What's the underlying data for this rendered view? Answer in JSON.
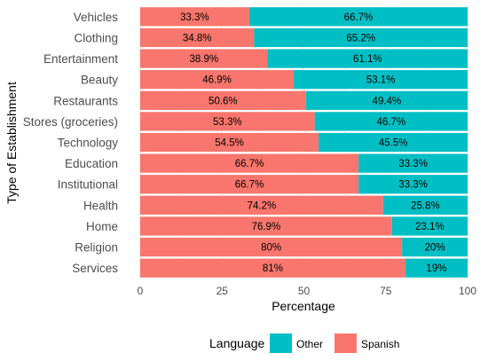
{
  "chart_data": {
    "type": "bar",
    "orientation": "horizontal",
    "stacked": true,
    "xlabel": "Percentage",
    "ylabel": "Type of Establishment",
    "xlim": [
      0,
      100
    ],
    "x_ticks": [
      "0",
      "25",
      "50",
      "75",
      "100"
    ],
    "grid": true,
    "legend_position": "bottom",
    "legend_title": "Language",
    "categories": [
      "Vehicles",
      "Clothing",
      "Entertainment",
      "Beauty",
      "Restaurants",
      "Stores (groceries)",
      "Technology",
      "Education",
      "Institutional",
      "Health",
      "Home",
      "Religion",
      "Services"
    ],
    "series": [
      {
        "name": "Spanish",
        "color": "#F8766D",
        "values": [
          33.3,
          34.8,
          38.9,
          46.9,
          50.6,
          53.3,
          54.5,
          66.7,
          66.7,
          74.2,
          76.9,
          80,
          81
        ],
        "labels": [
          "33.3%",
          "34.8%",
          "38.9%",
          "46.9%",
          "50.6%",
          "53.3%",
          "54.5%",
          "66.7%",
          "66.7%",
          "74.2%",
          "76.9%",
          "80%",
          "81%"
        ]
      },
      {
        "name": "Other",
        "color": "#00BFC4",
        "values": [
          66.7,
          65.2,
          61.1,
          53.1,
          49.4,
          46.7,
          45.5,
          33.3,
          33.3,
          25.8,
          23.1,
          20,
          19
        ],
        "labels": [
          "66.7%",
          "65.2%",
          "61.1%",
          "53.1%",
          "49.4%",
          "46.7%",
          "45.5%",
          "33.3%",
          "33.3%",
          "25.8%",
          "23.1%",
          "20%",
          "19%"
        ]
      }
    ],
    "legend_order": [
      "Other",
      "Spanish"
    ]
  }
}
